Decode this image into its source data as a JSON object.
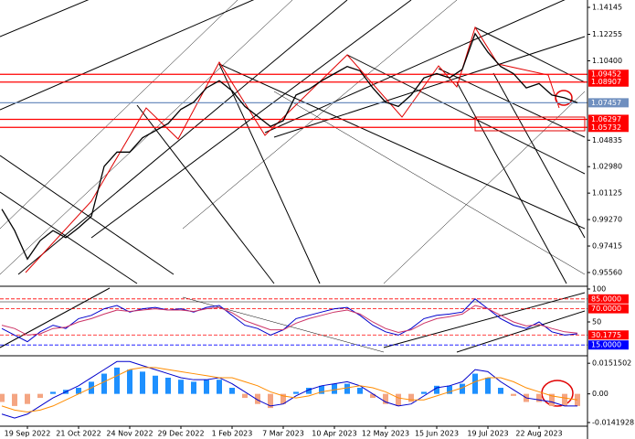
{
  "chart_data": [
    {
      "type": "line",
      "categories": [
        null,
        null,
        "19 Sep 2022",
        null,
        null,
        null,
        "21 Oct 2022",
        null,
        null,
        null,
        "24 Nov 2022",
        null,
        null,
        null,
        "29 Dec 2022",
        null,
        null,
        null,
        "1 Feb 2023",
        null,
        null,
        null,
        "7 Mar 2023",
        null,
        null,
        null,
        "10 Apr 2023",
        null,
        null,
        null,
        "12 May 2023",
        null,
        null,
        null,
        "15 Jun 2023",
        null,
        null,
        null,
        "19 Jul 2023",
        null,
        null,
        null,
        "22 Aug 2023",
        null,
        null,
        null
      ],
      "series": [
        {
          "color": "#000000",
          "values": [
            1.0,
            0.985,
            0.965,
            0.978,
            0.985,
            0.98,
            0.987,
            0.995,
            1.03,
            1.04,
            1.04,
            1.05,
            1.055,
            1.06,
            1.07,
            1.075,
            1.085,
            1.09,
            1.083,
            1.072,
            1.065,
            1.058,
            1.062,
            1.08,
            1.084,
            1.09,
            1.095,
            1.1,
            1.097,
            1.085,
            1.075,
            1.072,
            1.08,
            1.092,
            1.095,
            1.092,
            1.098,
            1.123,
            1.11,
            1.1,
            1.095,
            1.085,
            1.088,
            1.08,
            1.078,
            1.0746
          ]
        }
      ],
      "ylim": [
        0.9466,
        1.1466
      ],
      "yticks": [
        1.14145,
        1.12255,
        {
          "value": 1.104,
          "label": "1.10400"
        },
        1.04835,
        {
          "value": 1.0298,
          "label": "1.02980"
        },
        1.01125,
        {
          "value": 0.9927,
          "label": "0.99270"
        },
        0.97415,
        {
          "value": 0.9556,
          "label": "0.95560"
        }
      ],
      "levels": [
        {
          "value": 1.09452,
          "color": "#ff0000"
        },
        {
          "value": 1.08907,
          "color": "#ff0000"
        },
        {
          "value": 1.07457,
          "color": "#6f8fbf"
        },
        {
          "value": 1.06297,
          "color": "#ff0000"
        },
        {
          "value": 1.05732,
          "color": "#ff0000"
        }
      ]
    },
    {
      "type": "line",
      "series": [
        {
          "color": "#0000cc",
          "values": [
            40,
            30,
            20,
            35,
            45,
            40,
            55,
            60,
            70,
            75,
            65,
            70,
            72,
            68,
            70,
            65,
            72,
            75,
            60,
            45,
            40,
            30,
            38,
            55,
            60,
            65,
            70,
            72,
            60,
            45,
            35,
            30,
            40,
            55,
            60,
            62,
            65,
            85,
            70,
            55,
            45,
            40,
            50,
            35,
            30,
            32
          ]
        },
        {
          "color": "#cc3366",
          "values": [
            45,
            40,
            30,
            32,
            40,
            42,
            50,
            55,
            62,
            68,
            66,
            68,
            70,
            68,
            68,
            66,
            70,
            72,
            64,
            52,
            45,
            38,
            38,
            48,
            55,
            60,
            65,
            68,
            62,
            50,
            40,
            34,
            38,
            48,
            55,
            58,
            62,
            75,
            70,
            60,
            50,
            44,
            46,
            40,
            35,
            33
          ]
        }
      ],
      "ylim": [
        0,
        100
      ],
      "yticks": [
        100,
        50
      ],
      "levels": [
        {
          "value": 85,
          "label": "85.0000",
          "color": "#ff0000"
        },
        {
          "value": 70,
          "label": "70.0000",
          "color": "#ff0000"
        },
        {
          "value": 30.1775,
          "label": "30.1775",
          "color": "#ff0000"
        },
        {
          "value": 15,
          "label": "15.0000",
          "color": "#0000ff"
        }
      ]
    },
    {
      "type": "bar",
      "values": [
        -0.004,
        -0.006,
        -0.005,
        -0.002,
        0.001,
        0.002,
        0.003,
        0.006,
        0.01,
        0.013,
        0.012,
        0.011,
        0.009,
        0.008,
        0.007,
        0.006,
        0.007,
        0.007,
        0.003,
        -0.002,
        -0.005,
        -0.007,
        -0.005,
        0.001,
        0.003,
        0.004,
        0.005,
        0.005,
        0.003,
        -0.002,
        -0.005,
        -0.006,
        -0.004,
        0.001,
        0.004,
        0.004,
        0.005,
        0.01,
        0.008,
        0.003,
        -0.001,
        -0.004,
        -0.004,
        -0.006,
        -0.006,
        -0.006
      ],
      "color": "#1e90ff",
      "negative_color": "#f4a582",
      "series": [
        {
          "color": "#0000cc",
          "values": [
            -0.01,
            -0.012,
            -0.01,
            -0.006,
            -0.002,
            0.001,
            0.004,
            0.008,
            0.012,
            0.016,
            0.016,
            0.014,
            0.012,
            0.01,
            0.008,
            0.007,
            0.007,
            0.008,
            0.005,
            0.001,
            -0.003,
            -0.006,
            -0.005,
            -0.001,
            0.002,
            0.004,
            0.005,
            0.006,
            0.004,
            0.0,
            -0.004,
            -0.006,
            -0.005,
            -0.001,
            0.003,
            0.004,
            0.006,
            0.012,
            0.011,
            0.006,
            0.002,
            -0.002,
            -0.003,
            -0.004,
            -0.006,
            -0.006
          ]
        },
        {
          "color": "#ff8c00",
          "values": [
            -0.006,
            -0.008,
            -0.009,
            -0.008,
            -0.006,
            -0.003,
            0.0,
            0.003,
            0.006,
            0.009,
            0.012,
            0.013,
            0.013,
            0.012,
            0.011,
            0.01,
            0.009,
            0.008,
            0.008,
            0.006,
            0.004,
            0.001,
            -0.001,
            -0.002,
            -0.001,
            0.001,
            0.002,
            0.003,
            0.004,
            0.003,
            0.001,
            -0.002,
            -0.003,
            -0.003,
            -0.001,
            0.001,
            0.003,
            0.006,
            0.008,
            0.008,
            0.006,
            0.003,
            0.001,
            -0.001,
            -0.002,
            -0.003
          ]
        }
      ],
      "ylim": [
        -0.016,
        0.0184
      ],
      "yticks": [
        0.0151502,
        {
          "value": 0,
          "label": "0.00"
        },
        -0.0141928
      ]
    }
  ]
}
